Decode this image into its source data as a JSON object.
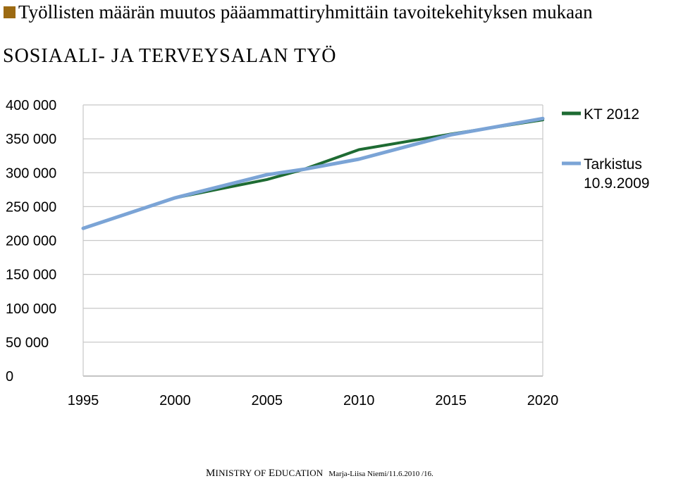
{
  "header": {
    "title": "Työllisten määrän muutos pääammattiryhmittäin tavoitekehityksen mukaan",
    "subtitle": "SOSIAALI- JA TERVEYSALAN TYÖ",
    "bullet_color": "#9c6a12"
  },
  "footer": {
    "ministry_first_initial": "M",
    "ministry_first_rest": "INISTRY OF ",
    "ministry_second_initial": "E",
    "ministry_second_rest": "DUCATION",
    "author": "Marja-Liisa Niemi/11.6.2010 /16."
  },
  "chart_data": {
    "type": "line",
    "x": [
      1995,
      2000,
      2005,
      2007,
      2010,
      2015,
      2020
    ],
    "xticks": [
      1995,
      2000,
      2005,
      2010,
      2015,
      2020
    ],
    "xtick_labels": [
      "1995",
      "2000",
      "2005",
      "2010",
      "2015",
      "2020"
    ],
    "yticks": [
      0,
      50000,
      100000,
      150000,
      200000,
      250000,
      300000,
      350000,
      400000
    ],
    "ytick_labels": [
      "0",
      "50 000",
      "100 000",
      "150 000",
      "200 000",
      "250 000",
      "300 000",
      "350 000",
      "400 000"
    ],
    "xlim": [
      1995,
      2020
    ],
    "ylim": [
      0,
      400000
    ],
    "grid": true,
    "legend_position": "right",
    "series": [
      {
        "name": "KT 2012",
        "color": "#1e6b33",
        "x": [
          1995,
          2000,
          2005,
          2007,
          2010,
          2015,
          2020
        ],
        "values": [
          218000,
          263000,
          290000,
          305000,
          334000,
          357000,
          378000
        ]
      },
      {
        "name": "Tarkistus\n10.9.2009",
        "label_lines": [
          "Tarkistus",
          "10.9.2009"
        ],
        "color": "#7ba4d6",
        "x": [
          1995,
          2000,
          2005,
          2007,
          2010,
          2015,
          2020
        ],
        "values": [
          218000,
          263000,
          297000,
          305000,
          320000,
          356000,
          380000
        ]
      }
    ]
  }
}
